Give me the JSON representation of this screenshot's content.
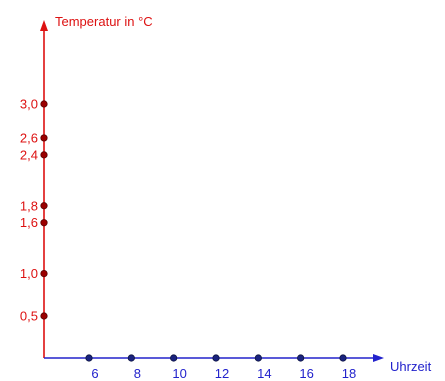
{
  "chart_data": {
    "type": "scatter",
    "title": "",
    "xlabel": "Uhrzeit",
    "ylabel": "Temperatur in °C",
    "x_ticks": [
      {
        "value": 6,
        "label": "6"
      },
      {
        "value": 8,
        "label": "8"
      },
      {
        "value": 10,
        "label": "10"
      },
      {
        "value": 12,
        "label": "12"
      },
      {
        "value": 14,
        "label": "14"
      },
      {
        "value": 16,
        "label": "16"
      },
      {
        "value": 18,
        "label": "18"
      }
    ],
    "y_ticks": [
      {
        "value": 0.5,
        "label": "0,5"
      },
      {
        "value": 1.0,
        "label": "1,0"
      },
      {
        "value": 1.6,
        "label": "1,6"
      },
      {
        "value": 1.8,
        "label": "1,8"
      },
      {
        "value": 2.4,
        "label": "2,4"
      },
      {
        "value": 2.6,
        "label": "2,6"
      },
      {
        "value": 3.0,
        "label": "3,0"
      }
    ],
    "x_axis_color": "#2222cc",
    "y_axis_color": "#dd1111",
    "x_point_color": "#1a237e",
    "y_point_color": "#9b0000",
    "grid": false
  }
}
